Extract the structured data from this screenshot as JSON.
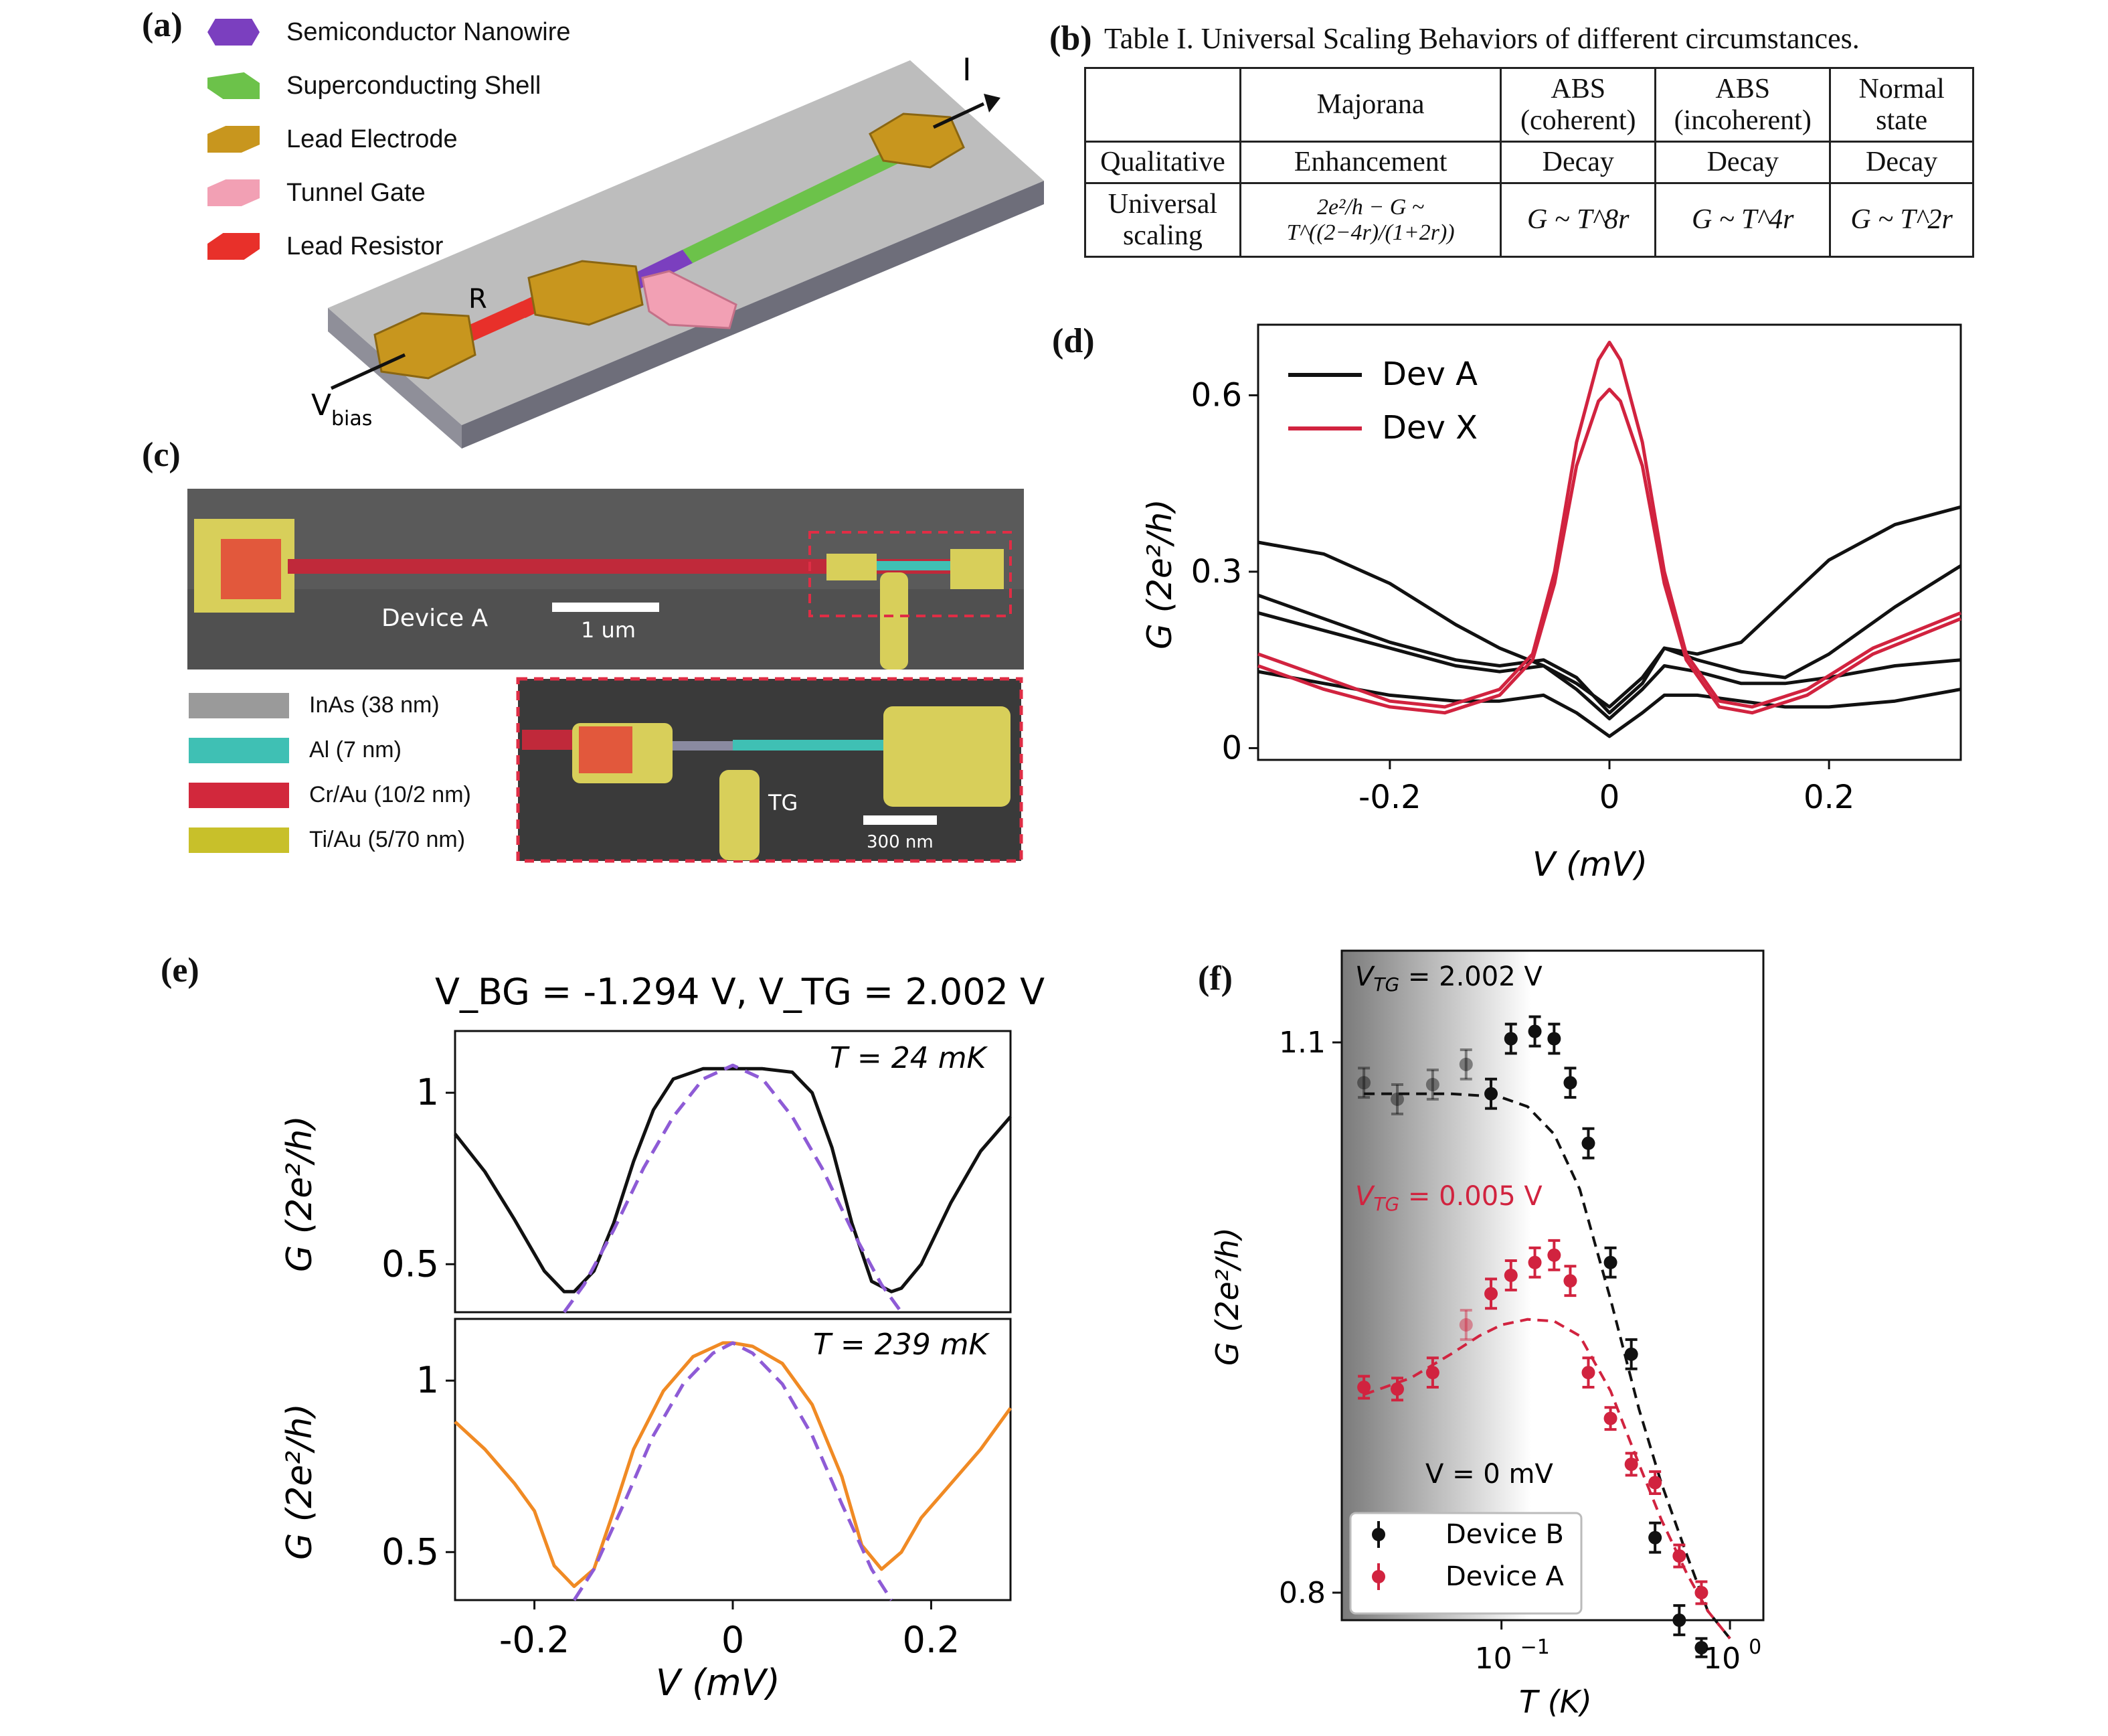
{
  "panel_labels": {
    "a": "(a)",
    "b": "(b)",
    "c": "(c)",
    "d": "(d)",
    "e": "(e)",
    "f": "(f)"
  },
  "panel_a": {
    "legend": [
      {
        "label": "Semiconductor Nanowire",
        "color": "#7b3fbf"
      },
      {
        "label": "Superconducting Shell",
        "color": "#6cc24a"
      },
      {
        "label": "Lead Electrode",
        "color": "#c8961e"
      },
      {
        "label": "Tunnel Gate",
        "color": "#f2a0b4"
      },
      {
        "label": "Lead Resistor",
        "color": "#e8302a"
      }
    ],
    "labels": {
      "current": "I",
      "resistor": "R",
      "vbias": "V",
      "vbias_sub": "bias"
    }
  },
  "panel_b": {
    "caption": "Table I.  Universal Scaling Behaviors of different circumstances.",
    "header": [
      "",
      "Majorana",
      "ABS (coherent)",
      "ABS (incoherent)",
      "Normal state"
    ],
    "row_qualitative": [
      "Qualitative",
      "Enhancement",
      "Decay",
      "Decay",
      "Decay"
    ],
    "row_scaling_label": "Universal scaling",
    "row_scaling": [
      "2e²/h − G ~ T^((2−4r)/(1+2r))",
      "G ~ T^8r",
      "G ~ T^4r",
      "G ~ T^2r"
    ]
  },
  "panel_c": {
    "device_label": "Device A",
    "scale_main": "1 um",
    "scale_inset": "300 nm",
    "tg_label": "TG",
    "materials": [
      {
        "label": "InAs (38 nm)",
        "color": "#9a9a9a"
      },
      {
        "label": "Al (7 nm)",
        "color": "#3fc0b4"
      },
      {
        "label": "Cr/Au (10/2 nm)",
        "color": "#d2283c"
      },
      {
        "label": "Ti/Au (5/70 nm)",
        "color": "#c8c02a"
      }
    ]
  },
  "chart_data": [
    {
      "id": "d",
      "type": "line",
      "xlabel": "V (mV)",
      "ylabel": "G (2e²/h)",
      "xlim": [
        -0.32,
        0.32
      ],
      "ylim": [
        -0.02,
        0.72
      ],
      "xticks": [
        -0.2,
        0,
        0.2
      ],
      "xtick_labels": [
        "-0.2",
        "0",
        "0.2"
      ],
      "yticks": [
        0,
        0.3,
        0.6
      ],
      "ytick_labels": [
        "0",
        "0.3",
        "0.6"
      ],
      "legend": [
        {
          "name": "Dev A",
          "color": "#111111"
        },
        {
          "name": "Dev X",
          "color": "#d1233f"
        }
      ],
      "series": [
        {
          "name": "Dev A",
          "color": "#111111",
          "x": [
            -0.32,
            -0.26,
            -0.2,
            -0.14,
            -0.1,
            -0.06,
            -0.03,
            0,
            0.03,
            0.05,
            0.08,
            0.12,
            0.16,
            0.2,
            0.26,
            0.32
          ],
          "y": [
            0.35,
            0.33,
            0.28,
            0.21,
            0.17,
            0.14,
            0.11,
            0.07,
            0.12,
            0.17,
            0.16,
            0.18,
            0.25,
            0.32,
            0.38,
            0.41
          ]
        },
        {
          "name": "Dev A",
          "color": "#111111",
          "x": [
            -0.32,
            -0.26,
            -0.2,
            -0.14,
            -0.1,
            -0.06,
            -0.03,
            0,
            0.03,
            0.05,
            0.08,
            0.12,
            0.16,
            0.2,
            0.26,
            0.32
          ],
          "y": [
            0.26,
            0.22,
            0.18,
            0.15,
            0.14,
            0.15,
            0.12,
            0.06,
            0.11,
            0.17,
            0.15,
            0.13,
            0.12,
            0.16,
            0.24,
            0.31
          ]
        },
        {
          "name": "Dev A",
          "color": "#111111",
          "x": [
            -0.32,
            -0.26,
            -0.2,
            -0.14,
            -0.1,
            -0.06,
            -0.03,
            0,
            0.03,
            0.05,
            0.08,
            0.12,
            0.16,
            0.2,
            0.26,
            0.32
          ],
          "y": [
            0.23,
            0.2,
            0.17,
            0.14,
            0.13,
            0.14,
            0.1,
            0.05,
            0.1,
            0.14,
            0.13,
            0.11,
            0.11,
            0.12,
            0.14,
            0.15
          ]
        },
        {
          "name": "Dev A",
          "color": "#111111",
          "x": [
            -0.32,
            -0.26,
            -0.2,
            -0.14,
            -0.1,
            -0.06,
            -0.03,
            0,
            0.03,
            0.05,
            0.08,
            0.12,
            0.16,
            0.2,
            0.26,
            0.32
          ],
          "y": [
            0.13,
            0.11,
            0.09,
            0.08,
            0.08,
            0.09,
            0.06,
            0.02,
            0.06,
            0.09,
            0.09,
            0.08,
            0.07,
            0.07,
            0.08,
            0.1
          ]
        },
        {
          "name": "Dev X",
          "color": "#d1233f",
          "x": [
            -0.32,
            -0.26,
            -0.2,
            -0.15,
            -0.1,
            -0.07,
            -0.05,
            -0.03,
            -0.01,
            0,
            0.01,
            0.03,
            0.05,
            0.07,
            0.1,
            0.13,
            0.18,
            0.24,
            0.32
          ],
          "y": [
            0.16,
            0.12,
            0.08,
            0.07,
            0.1,
            0.16,
            0.3,
            0.52,
            0.66,
            0.69,
            0.66,
            0.52,
            0.3,
            0.16,
            0.08,
            0.07,
            0.1,
            0.17,
            0.23
          ]
        },
        {
          "name": "Dev X",
          "color": "#d1233f",
          "x": [
            -0.32,
            -0.26,
            -0.2,
            -0.15,
            -0.1,
            -0.07,
            -0.05,
            -0.03,
            -0.01,
            0,
            0.01,
            0.03,
            0.05,
            0.07,
            0.1,
            0.13,
            0.18,
            0.24,
            0.32
          ],
          "y": [
            0.14,
            0.1,
            0.07,
            0.06,
            0.09,
            0.15,
            0.28,
            0.48,
            0.59,
            0.61,
            0.59,
            0.48,
            0.28,
            0.15,
            0.07,
            0.06,
            0.09,
            0.16,
            0.22
          ]
        }
      ]
    },
    {
      "id": "e-top",
      "type": "line",
      "title": "V_BG = -1.294 V, V_TG = 2.002 V",
      "annotation": "T = 24 mK",
      "ylabel": "G (2e²/h)",
      "xlim": [
        -0.28,
        0.28
      ],
      "ylim": [
        0.36,
        1.18
      ],
      "yticks": [
        0.5,
        1
      ],
      "ytick_labels": [
        "0.5",
        "1"
      ],
      "series": [
        {
          "name": "data",
          "color": "#111111",
          "x": [
            -0.28,
            -0.25,
            -0.22,
            -0.19,
            -0.17,
            -0.16,
            -0.14,
            -0.12,
            -0.1,
            -0.08,
            -0.06,
            -0.03,
            0,
            0.03,
            0.06,
            0.08,
            0.1,
            0.12,
            0.14,
            0.16,
            0.17,
            0.19,
            0.22,
            0.25,
            0.28
          ],
          "y": [
            0.88,
            0.77,
            0.63,
            0.48,
            0.42,
            0.42,
            0.48,
            0.62,
            0.8,
            0.95,
            1.04,
            1.07,
            1.07,
            1.07,
            1.06,
            1.0,
            0.84,
            0.62,
            0.45,
            0.42,
            0.43,
            0.5,
            0.68,
            0.83,
            0.93
          ]
        },
        {
          "name": "fit",
          "color": "#8e5bd6",
          "dashed": true,
          "x": [
            -0.17,
            -0.15,
            -0.12,
            -0.09,
            -0.06,
            -0.03,
            0,
            0.03,
            0.06,
            0.09,
            0.12,
            0.15,
            0.17
          ],
          "y": [
            0.36,
            0.44,
            0.6,
            0.78,
            0.93,
            1.04,
            1.08,
            1.04,
            0.93,
            0.78,
            0.6,
            0.44,
            0.36
          ]
        }
      ]
    },
    {
      "id": "e-bottom",
      "type": "line",
      "annotation": "T = 239 mK",
      "xlabel": "V (mV)",
      "ylabel": "G (2e²/h)",
      "xlim": [
        -0.28,
        0.28
      ],
      "ylim": [
        0.36,
        1.18
      ],
      "xticks": [
        -0.2,
        0,
        0.2
      ],
      "xtick_labels": [
        "-0.2",
        "0",
        "0.2"
      ],
      "yticks": [
        0.5,
        1
      ],
      "ytick_labels": [
        "0.5",
        "1"
      ],
      "series": [
        {
          "name": "data",
          "color": "#f08a24",
          "x": [
            -0.28,
            -0.25,
            -0.22,
            -0.2,
            -0.18,
            -0.16,
            -0.14,
            -0.12,
            -0.1,
            -0.07,
            -0.04,
            -0.01,
            0,
            0.02,
            0.05,
            0.08,
            0.11,
            0.13,
            0.15,
            0.17,
            0.19,
            0.22,
            0.25,
            0.28
          ],
          "y": [
            0.88,
            0.8,
            0.7,
            0.62,
            0.46,
            0.4,
            0.45,
            0.62,
            0.8,
            0.97,
            1.07,
            1.11,
            1.11,
            1.1,
            1.05,
            0.93,
            0.72,
            0.52,
            0.45,
            0.5,
            0.6,
            0.7,
            0.8,
            0.92
          ]
        },
        {
          "name": "fit",
          "color": "#8e5bd6",
          "dashed": true,
          "x": [
            -0.16,
            -0.14,
            -0.11,
            -0.08,
            -0.05,
            -0.02,
            0,
            0.02,
            0.05,
            0.08,
            0.11,
            0.14,
            0.16
          ],
          "y": [
            0.36,
            0.45,
            0.64,
            0.84,
            0.99,
            1.08,
            1.11,
            1.08,
            0.99,
            0.84,
            0.64,
            0.45,
            0.36
          ]
        }
      ]
    },
    {
      "id": "f",
      "type": "scatter",
      "xscale": "log",
      "xlabel": "T (K)",
      "ylabel": "G (2e²/h)",
      "xlim": [
        0.02,
        1.4
      ],
      "ylim": [
        0.785,
        1.15
      ],
      "xticks": [
        0.1,
        1.0
      ],
      "xtick_labels": [
        "10",
        "10"
      ],
      "xtick_exponents": [
        "−1",
        "0"
      ],
      "yticks": [
        0.8,
        1.1
      ],
      "ytick_labels": [
        "0.8",
        "1.1"
      ],
      "annotations": {
        "vtg_b_main": "V",
        "vtg_b_sub": "TG",
        "vtg_b_value": " = 2.002 V",
        "vtg_a_value": " = 0.005 V",
        "v0": "V = 0 mV"
      },
      "legend_position": "lower-left",
      "series": [
        {
          "name": "Device B",
          "color": "#111111",
          "x": [
            0.025,
            0.035,
            0.05,
            0.07,
            0.09,
            0.11,
            0.14,
            0.17,
            0.2,
            0.24,
            0.3,
            0.37,
            0.47,
            0.6,
            0.75
          ],
          "y": [
            1.078,
            1.069,
            1.077,
            1.088,
            1.072,
            1.102,
            1.106,
            1.102,
            1.078,
            1.045,
            0.98,
            0.93,
            0.83,
            0.785,
            0.77
          ],
          "err": [
            0.008,
            0.008,
            0.008,
            0.008,
            0.008,
            0.008,
            0.008,
            0.008,
            0.008,
            0.008,
            0.008,
            0.008,
            0.008,
            0.008,
            0.005
          ],
          "faded": [
            true,
            true,
            true,
            true,
            false,
            false,
            false,
            false,
            false,
            false,
            false,
            false,
            false,
            false,
            false
          ]
        },
        {
          "name": "Device A",
          "color": "#d1233f",
          "x": [
            0.025,
            0.035,
            0.05,
            0.07,
            0.09,
            0.11,
            0.14,
            0.17,
            0.2,
            0.24,
            0.3,
            0.37,
            0.47,
            0.6,
            0.75
          ],
          "y": [
            0.912,
            0.911,
            0.92,
            0.946,
            0.963,
            0.973,
            0.98,
            0.984,
            0.97,
            0.92,
            0.895,
            0.87,
            0.86,
            0.82,
            0.8
          ],
          "err": [
            0.006,
            0.006,
            0.008,
            0.008,
            0.008,
            0.008,
            0.008,
            0.008,
            0.008,
            0.008,
            0.006,
            0.006,
            0.006,
            0.006,
            0.006
          ],
          "faded": [
            false,
            false,
            false,
            true,
            false,
            false,
            false,
            false,
            false,
            false,
            false,
            false,
            false,
            false,
            false
          ]
        }
      ],
      "fits": [
        {
          "name": "Device B fit",
          "color": "#111111",
          "x": [
            0.025,
            0.04,
            0.06,
            0.08,
            0.1,
            0.13,
            0.17,
            0.22,
            0.3,
            0.4,
            0.5,
            0.65,
            0.8,
            1.0
          ],
          "y": [
            1.072,
            1.072,
            1.072,
            1.071,
            1.07,
            1.065,
            1.05,
            1.02,
            0.96,
            0.9,
            0.86,
            0.82,
            0.79,
            0.775
          ]
        },
        {
          "name": "Device A fit",
          "color": "#d1233f",
          "x": [
            0.025,
            0.04,
            0.06,
            0.08,
            0.1,
            0.13,
            0.17,
            0.22,
            0.3,
            0.4,
            0.5,
            0.65,
            0.8,
            1.0
          ],
          "y": [
            0.908,
            0.917,
            0.93,
            0.94,
            0.946,
            0.949,
            0.948,
            0.94,
            0.91,
            0.87,
            0.84,
            0.81,
            0.79,
            0.775
          ]
        }
      ]
    }
  ]
}
